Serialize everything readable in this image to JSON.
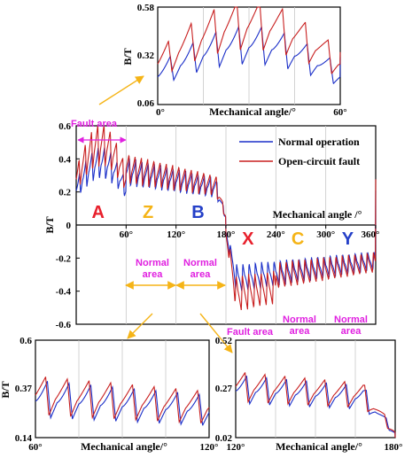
{
  "chart_data": [
    {
      "id": "main",
      "type": "line",
      "ylabel": "B/T",
      "xlabel": "Mechanical angle /°",
      "xlim": [
        0,
        360
      ],
      "ylim": [
        -0.6,
        0.6
      ],
      "xticks": [
        "60°",
        "120°",
        "180°",
        "240°",
        "300°",
        "360°"
      ],
      "yticks": [
        "0.6",
        "0.4",
        "0.2",
        "0",
        "-0.2",
        "-0.4",
        "-0.6"
      ],
      "grid": true,
      "legend": "top-right",
      "series": [
        {
          "name": "Normal operation",
          "color": "#1a2ec8"
        },
        {
          "name": "Open-circuit fault",
          "color": "#c81e1e"
        }
      ],
      "zones": [
        {
          "letter": "A",
          "x": 20,
          "color": "#e8202c"
        },
        {
          "letter": "Z",
          "x": 80,
          "color": "#f5b417"
        },
        {
          "letter": "B",
          "x": 140,
          "color": "#2540c8"
        },
        {
          "letter": "X",
          "x": 200,
          "color": "#e8202c"
        },
        {
          "letter": "C",
          "x": 260,
          "color": "#f5b417"
        },
        {
          "letter": "Y",
          "x": 320,
          "color": "#2540c8"
        }
      ],
      "annotations": [
        "Fault area",
        "Normal area",
        "Normal area",
        "Fault area",
        "Normal area",
        "Normal area"
      ],
      "pulse_period_deg": 7.5
    },
    {
      "id": "inset_top",
      "type": "line",
      "ylabel": "B/T",
      "xlabel": "Mechanical angle/°",
      "xlim": [
        0,
        60
      ],
      "ylim": [
        0.06,
        0.58
      ],
      "xticks": [
        "0°",
        "60°"
      ],
      "yticks": [
        "0.58",
        "0.32",
        "0.06"
      ]
    },
    {
      "id": "inset_left",
      "type": "line",
      "ylabel": "B/T",
      "xlabel": "Mechanical angle/°",
      "xlim": [
        60,
        120
      ],
      "ylim": [
        0.14,
        0.6
      ],
      "xticks": [
        "60°",
        "120°"
      ],
      "yticks": [
        "0.6",
        "0.37",
        "0.14"
      ]
    },
    {
      "id": "inset_right",
      "type": "line",
      "xlabel": "Mechanical angle/°",
      "xlim": [
        120,
        180
      ],
      "ylim": [
        0.02,
        0.52
      ],
      "xticks": [
        "120°",
        "180°"
      ],
      "yticks": [
        "0.52",
        "0.27",
        "0.02"
      ]
    }
  ],
  "colors": {
    "normal": "#1a2ec8",
    "fault": "#c81e1e",
    "annotation": "#e020e0",
    "arrow": "#f5b417"
  }
}
